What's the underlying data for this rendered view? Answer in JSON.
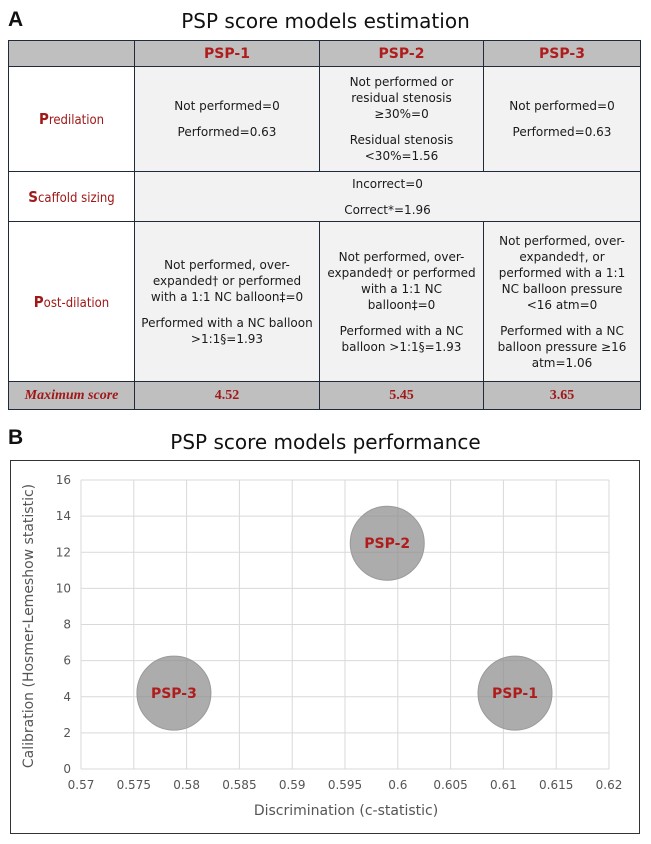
{
  "panel_a": {
    "letter": "A",
    "title": "PSP score models estimation",
    "columns": [
      "PSP-1",
      "PSP-2",
      "PSP-3"
    ],
    "rows": [
      {
        "label_initial": "P",
        "label_rest": "redilation",
        "cells": [
          [
            "Not performed=0",
            "Performed=0.63"
          ],
          [
            "Not performed or residual stenosis ≥30%=0",
            "Residual stenosis <30%=1.56"
          ],
          [
            "Not performed=0",
            "Performed=0.63"
          ]
        ]
      },
      {
        "label_initial": "S",
        "label_rest": "caffold sizing",
        "merged": [
          "Incorrect=0",
          "Correct*=1.96"
        ]
      },
      {
        "label_initial": "P",
        "label_rest": "ost-dilation",
        "cells": [
          [
            "Not performed, over-expanded† or performed with a 1:1 NC balloon‡=0",
            "Performed with a NC balloon >1:1§=1.93"
          ],
          [
            "Not performed, over-expanded† or performed with a 1:1 NC balloon‡=0",
            "Performed with a NC balloon >1:1§=1.93"
          ],
          [
            "Not performed, over-expanded†, or performed with a 1:1 NC balloon pressure <16 atm=0",
            "Performed with a NC balloon pressure ≥16 atm=1.06"
          ]
        ]
      }
    ],
    "max_label": "Maximum score",
    "max_values": [
      "4.52",
      "5.45",
      "3.65"
    ]
  },
  "panel_b": {
    "letter": "B",
    "title": "PSP score models performance"
  },
  "chart_data": {
    "type": "scatter",
    "title": "PSP score models performance",
    "xlabel": "Discrimination (c-statistic)",
    "ylabel": "Calibration (Hosmer-Lemeshow statistic)",
    "xlim": [
      0.57,
      0.62
    ],
    "ylim": [
      0,
      16
    ],
    "xticks": [
      "0.57",
      "0.575",
      "0.58",
      "0.585",
      "0.59",
      "0.595",
      "0.6",
      "0.605",
      "0.61",
      "0.615",
      "0.62"
    ],
    "yticks": [
      "0",
      "2",
      "4",
      "6",
      "8",
      "10",
      "12",
      "14",
      "16"
    ],
    "grid": true,
    "points": [
      {
        "name": "PSP-2",
        "x": 0.599,
        "y": 12.5
      },
      {
        "name": "PSP-3",
        "x": 0.5788,
        "y": 4.2
      },
      {
        "name": "PSP-1",
        "x": 0.6111,
        "y": 4.2
      }
    ],
    "colors": {
      "bubble": "#8c8c8c",
      "label": "#b01c1c",
      "grid": "#d9d9d9"
    }
  }
}
